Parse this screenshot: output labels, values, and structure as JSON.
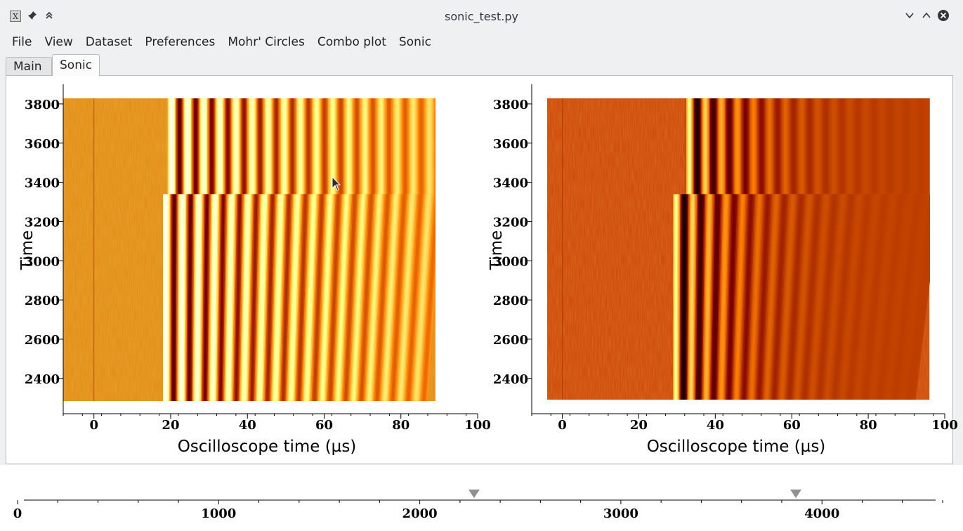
{
  "window": {
    "title": "sonic_test.py",
    "buttons": [
      "app-icon",
      "pin-icon",
      "keep-above-icon",
      "minimize-icon",
      "maximize-icon",
      "close-icon"
    ]
  },
  "menubar": {
    "items": [
      "File",
      "View",
      "Dataset",
      "Preferences",
      "Mohr' Circles",
      "Combo plot",
      "Sonic"
    ]
  },
  "tabs": {
    "items": [
      "Main",
      "Sonic"
    ],
    "active": "Sonic"
  },
  "chart_data": [
    {
      "type": "heatmap",
      "xlabel": "Oscilloscope time (µs)",
      "ylabel": "Time",
      "xlim": [
        -8,
        100
      ],
      "ylim": [
        2220,
        3900
      ],
      "xticks": [
        0,
        20,
        40,
        60,
        80,
        100
      ],
      "yticks": [
        2400,
        2600,
        2800,
        3000,
        3200,
        3400,
        3600,
        3800
      ],
      "image_extent": {
        "x": [
          -8,
          89
        ],
        "y": [
          2270,
          3870
        ]
      },
      "colormap": "afmhot",
      "base_color": "#e08a10",
      "wave_arrivals": [
        {
          "time_from": 3340,
          "time_to": 3870,
          "arrival_us": 19
        },
        {
          "time_from": 2270,
          "time_to": 3340,
          "arrival_us": 18
        }
      ],
      "grid": false
    },
    {
      "type": "heatmap",
      "xlabel": "Oscilloscope time (µs)",
      "ylabel": "Time",
      "xlim": [
        -8,
        100
      ],
      "ylim": [
        2220,
        3900
      ],
      "xticks": [
        0,
        20,
        40,
        60,
        80,
        100
      ],
      "yticks": [
        2400,
        2600,
        2800,
        3000,
        3200,
        3400,
        3600,
        3800
      ],
      "image_extent": {
        "x": [
          -4,
          96
        ],
        "y": [
          2270,
          3870
        ]
      },
      "colormap": "afmhot",
      "base_color": "#cc4200",
      "wave_arrivals": [
        {
          "time_from": 3340,
          "time_to": 3870,
          "arrival_us": 32
        },
        {
          "time_from": 2270,
          "time_to": 3340,
          "arrival_us": 29
        }
      ],
      "grid": false
    },
    {
      "type": "line",
      "xlim": [
        0,
        4600
      ],
      "xticks": [
        0,
        1000,
        2000,
        3000,
        4000
      ],
      "markers": [
        2270,
        3870
      ],
      "marker_color": "#909090"
    }
  ]
}
